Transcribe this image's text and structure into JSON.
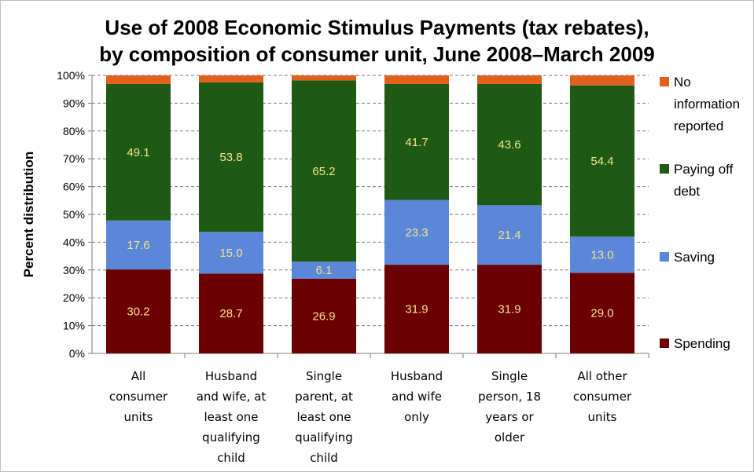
{
  "chart_data": {
    "type": "bar",
    "stacked": true,
    "title_lines": [
      "Use of 2008 Economic Stimulus Payments (tax rebates),",
      "by composition of consumer unit, June 2008–March 2009"
    ],
    "ylabel": "Percent distribution",
    "ylim": [
      0,
      100
    ],
    "y_ticks": [
      "0%",
      "10%",
      "20%",
      "30%",
      "40%",
      "50%",
      "60%",
      "70%",
      "80%",
      "90%",
      "100%"
    ],
    "grid": "horizontal dashed",
    "legend_position": "right",
    "categories": [
      [
        "All",
        "consumer",
        "units"
      ],
      [
        "Husband",
        "and wife, at",
        "least one",
        "qualifying",
        "child"
      ],
      [
        "Single",
        "parent, at",
        "least one",
        "qualifying",
        "child"
      ],
      [
        "Husband",
        "and wife",
        "only"
      ],
      [
        "Single",
        "person, 18",
        "years or",
        "older"
      ],
      [
        "All other",
        "consumer",
        "units"
      ]
    ],
    "series": [
      {
        "name": "Spending",
        "color": "#6b0000",
        "values": [
          30.2,
          28.7,
          26.9,
          31.9,
          31.9,
          29.0
        ],
        "labels": [
          "30.2",
          "28.7",
          "26.9",
          "31.9",
          "31.9",
          "29.0"
        ]
      },
      {
        "name": "Saving",
        "color": "#5b87d8",
        "values": [
          17.6,
          15.0,
          6.1,
          23.3,
          21.4,
          13.0
        ],
        "labels": [
          "17.6",
          "15.0",
          "6.1",
          "23.3",
          "21.4",
          "13.0"
        ]
      },
      {
        "name": "Paying off debt",
        "color": "#1f5a14",
        "values": [
          49.1,
          53.8,
          65.2,
          41.7,
          43.6,
          54.4
        ],
        "labels": [
          "49.1",
          "53.8",
          "65.2",
          "41.7",
          "43.6",
          "54.4"
        ]
      },
      {
        "name": "No information reported",
        "color": "#e0601c",
        "values": [
          3.1,
          2.5,
          1.8,
          3.1,
          3.1,
          3.6
        ],
        "labels": [
          "",
          "",
          "",
          "",
          "",
          ""
        ]
      }
    ],
    "legend": [
      {
        "lines": [
          "No",
          "information",
          "reported"
        ],
        "color": "#e0601c"
      },
      {
        "lines": [
          "Paying off",
          "debt"
        ],
        "color": "#1f5a14"
      },
      {
        "lines": [
          "Saving"
        ],
        "color": "#5b87d8"
      },
      {
        "lines": [
          "Spending"
        ],
        "color": "#6b0000"
      }
    ]
  }
}
